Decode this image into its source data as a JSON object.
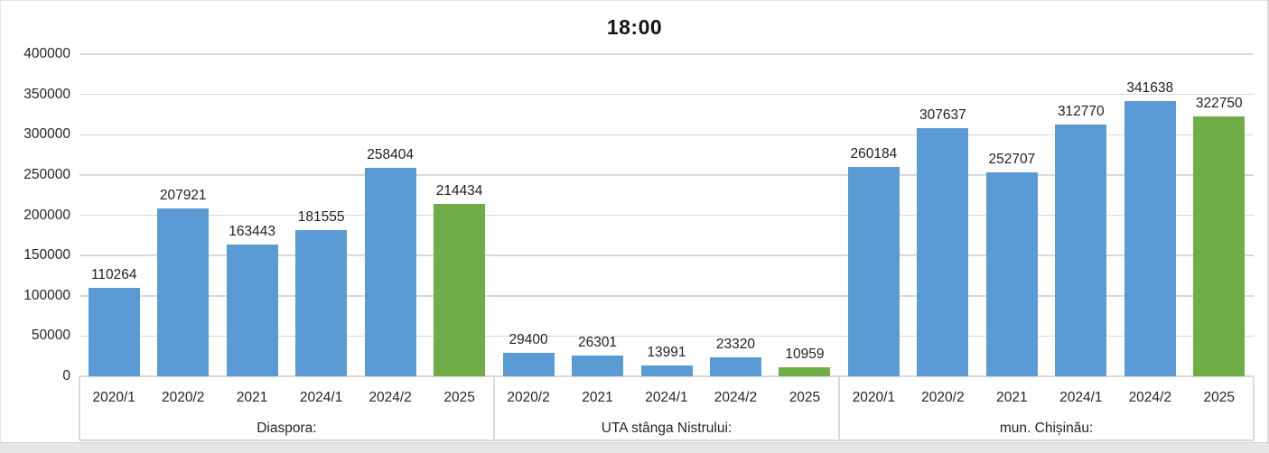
{
  "chart_data": {
    "type": "bar",
    "title": "18:00",
    "xlabel": "",
    "ylabel": "",
    "ylim": [
      0,
      400000
    ],
    "ytick_step": 50000,
    "ytick_labels": [
      "0",
      "50000",
      "100000",
      "150000",
      "200000",
      "250000",
      "300000",
      "350000",
      "400000"
    ],
    "grid": true,
    "legend": null,
    "palette": {
      "blue": "#5B9BD5",
      "green": "#70AD47"
    },
    "grid_color": "#D9D9D9",
    "groups": [
      {
        "label": "Diaspora:",
        "bars": [
          {
            "category": "2020/1",
            "value": 110264,
            "color": "blue"
          },
          {
            "category": "2020/2",
            "value": 207921,
            "color": "blue"
          },
          {
            "category": "2021",
            "value": 163443,
            "color": "blue"
          },
          {
            "category": "2024/1",
            "value": 181555,
            "color": "blue"
          },
          {
            "category": "2024/2",
            "value": 258404,
            "color": "blue"
          },
          {
            "category": "2025",
            "value": 214434,
            "color": "green"
          }
        ]
      },
      {
        "label": "UTA stânga Nistrului:",
        "bars": [
          {
            "category": "2020/2",
            "value": 29400,
            "color": "blue"
          },
          {
            "category": "2021",
            "value": 26301,
            "color": "blue"
          },
          {
            "category": "2024/1",
            "value": 13991,
            "color": "blue"
          },
          {
            "category": "2024/2",
            "value": 23320,
            "color": "blue"
          },
          {
            "category": "2025",
            "value": 10959,
            "color": "green"
          }
        ]
      },
      {
        "label": "mun. Chișinău:",
        "bars": [
          {
            "category": "2020/1",
            "value": 260184,
            "color": "blue"
          },
          {
            "category": "2020/2",
            "value": 307637,
            "color": "blue"
          },
          {
            "category": "2021",
            "value": 252707,
            "color": "blue"
          },
          {
            "category": "2024/1",
            "value": 312770,
            "color": "blue"
          },
          {
            "category": "2024/2",
            "value": 341638,
            "color": "blue"
          },
          {
            "category": "2025",
            "value": 322750,
            "color": "green"
          }
        ]
      }
    ]
  }
}
